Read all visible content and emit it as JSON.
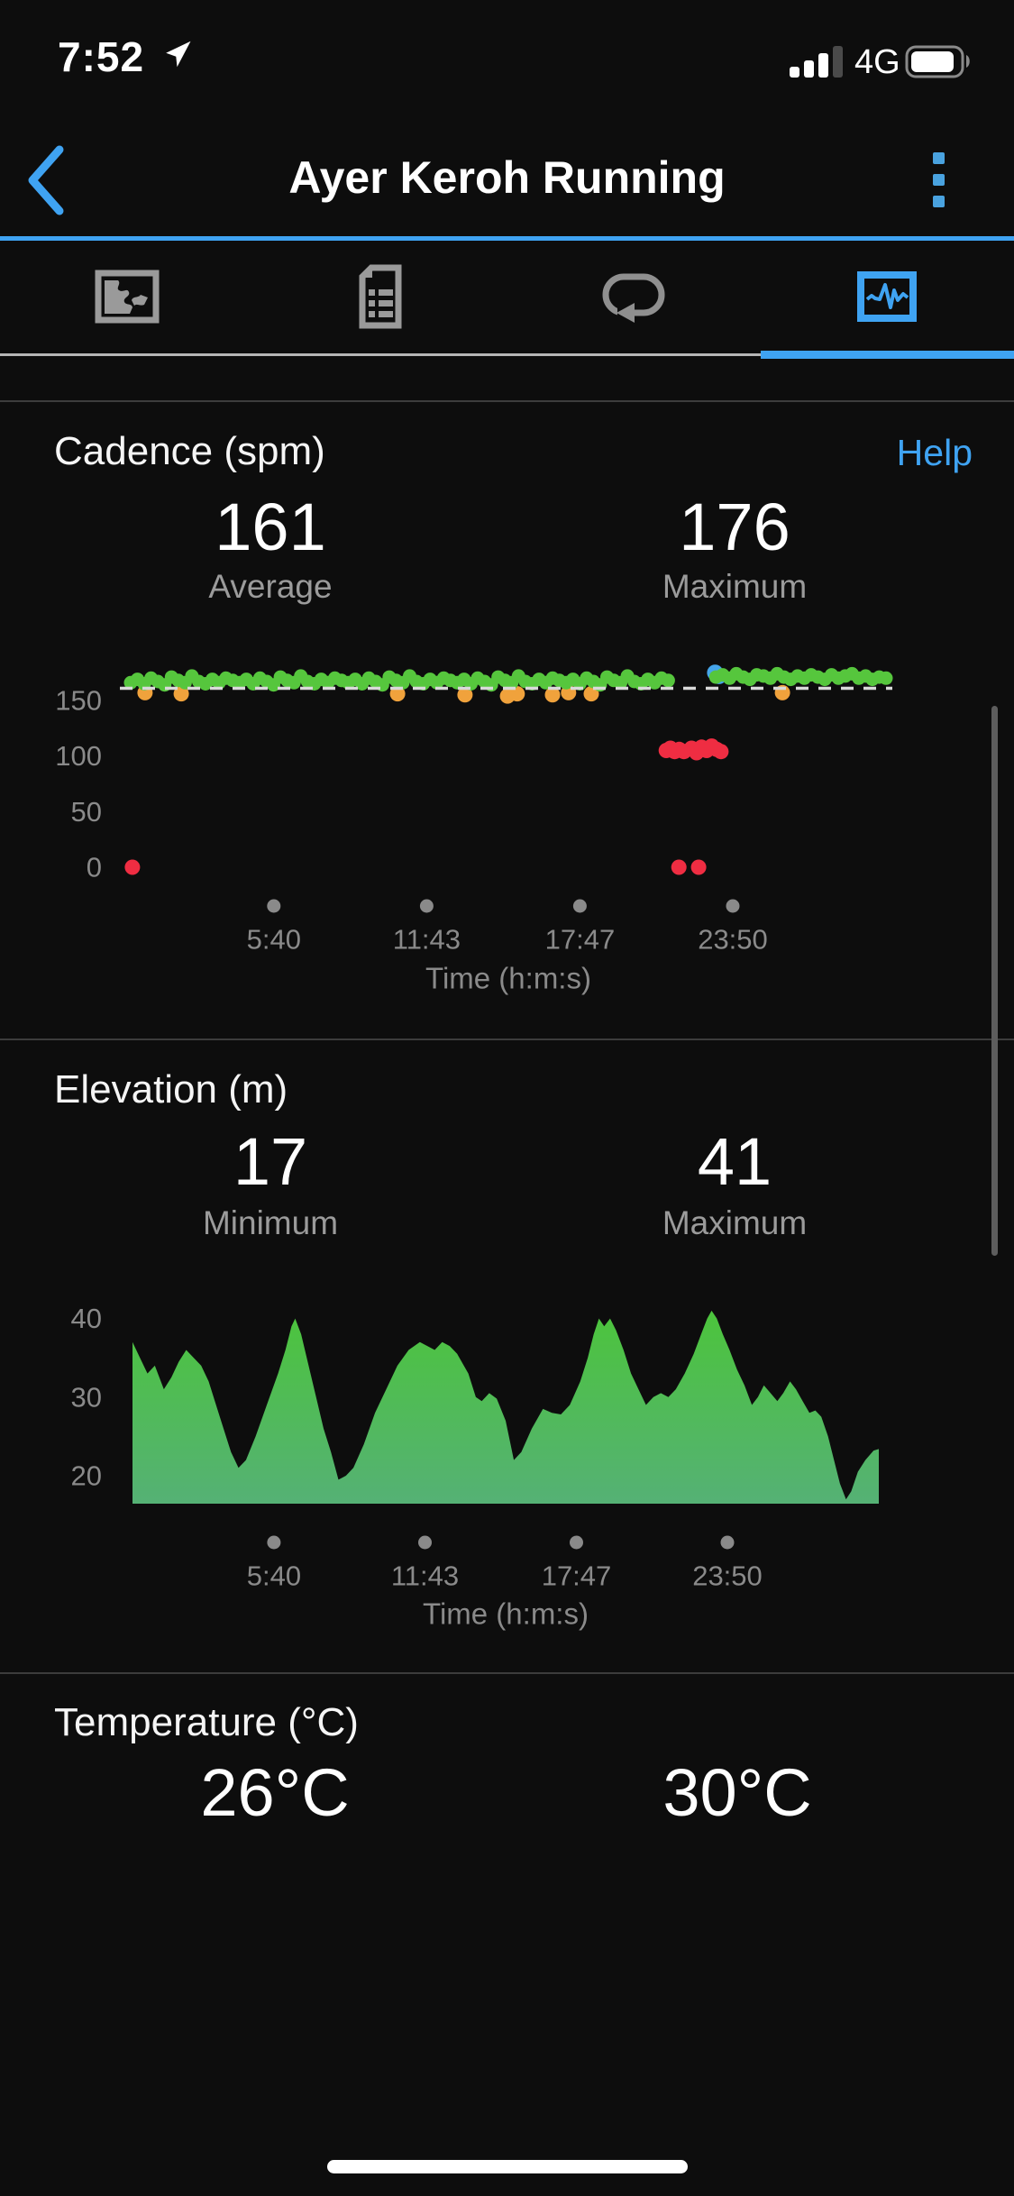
{
  "colors": {
    "accent": "#3fa3f2",
    "background": "#0d0d0d",
    "divider": "#3c3c3c",
    "text_primary": "#ffffff",
    "text_secondary": "#9b9b9b",
    "axis": "#8a8a8a",
    "dashed_line": "#d9d9d9",
    "icon_gray": "#9a9a9a"
  },
  "status_bar": {
    "time": "7:52",
    "network": "4G",
    "signal_bars_filled": 3,
    "signal_bars_total": 4,
    "battery_percent": 90
  },
  "header": {
    "title": "Ayer Keroh Running"
  },
  "tab_bar": {
    "tabs": [
      {
        "name": "map",
        "icon": "map-icon",
        "selected": false
      },
      {
        "name": "details",
        "icon": "document-icon",
        "selected": false
      },
      {
        "name": "laps",
        "icon": "loop-icon",
        "selected": false
      },
      {
        "name": "charts",
        "icon": "chart-icon",
        "selected": true
      }
    ]
  },
  "sections": {
    "cadence": {
      "title": "Cadence (spm)",
      "help_label": "Help",
      "stats": [
        {
          "value": "161",
          "label": "Average"
        },
        {
          "value": "176",
          "label": "Maximum"
        }
      ]
    },
    "elevation": {
      "title": "Elevation (m)",
      "stats": [
        {
          "value": "17",
          "label": "Minimum"
        },
        {
          "value": "41",
          "label": "Maximum"
        }
      ]
    },
    "temperature": {
      "title": "Temperature (°C)",
      "stats": [
        {
          "value": "26°C"
        },
        {
          "value": "30°C"
        }
      ]
    }
  },
  "chart_data": [
    {
      "type": "scatter",
      "title": "Cadence (spm)",
      "xlabel": "Time (h:m:s)",
      "x_range_s": [
        0,
        1794
      ],
      "x_ticks": {
        "seconds": [
          340,
          703,
          1067,
          1430
        ],
        "labels": [
          "5:40",
          "11:43",
          "17:47",
          "23:50"
        ]
      },
      "y_ticks": [
        150,
        100,
        50,
        0
      ],
      "ylim": [
        0,
        185
      ],
      "avg_line": 161,
      "series": [
        {
          "name": "green",
          "color": "#56c63d",
          "gap_s": [
            1287,
            1379
          ],
          "values": [
            166,
            169,
            165,
            170,
            167,
            164,
            171,
            168,
            166,
            172,
            167,
            165,
            169,
            166,
            170,
            168,
            166,
            169,
            165,
            170,
            167,
            164,
            171,
            168,
            166,
            172,
            167,
            165,
            169,
            166,
            170,
            168,
            166,
            169,
            165,
            170,
            167,
            164,
            171,
            168,
            166,
            172,
            167,
            165,
            169,
            166,
            170,
            168,
            166,
            169,
            165,
            170,
            167,
            164,
            171,
            168,
            166,
            172,
            167,
            165,
            169,
            166,
            170,
            168,
            166,
            169,
            165,
            170,
            167,
            164,
            171,
            168,
            166,
            172,
            167,
            165,
            169,
            166,
            170,
            168,
            167,
            168,
            166,
            169,
            167,
            170,
            171,
            173,
            170,
            174,
            171,
            169,
            173,
            172,
            170,
            174,
            171,
            169,
            172,
            170,
            173,
            171,
            169,
            173,
            170,
            172,
            174,
            170,
            172,
            169,
            171,
            170
          ]
        },
        {
          "name": "orange",
          "color": "#f0a23c",
          "points": [
            [
              34,
              157
            ],
            [
              120,
              156
            ],
            [
              634,
              156
            ],
            [
              794,
              155
            ],
            [
              895,
              154
            ],
            [
              918,
              156
            ],
            [
              1002,
              155
            ],
            [
              1040,
              157
            ],
            [
              1094,
              156
            ],
            [
              1548,
              157
            ]
          ]
        },
        {
          "name": "blue",
          "color": "#45a5ea",
          "points": [
            [
              1388,
              175
            ],
            [
              1397,
              172
            ]
          ]
        },
        {
          "name": "red",
          "color": "#ef2d42",
          "points": [
            [
              4,
              0
            ],
            [
              1272,
              105
            ],
            [
              1282,
              107
            ],
            [
              1292,
              104
            ],
            [
              1303,
              106
            ],
            [
              1314,
              104
            ],
            [
              1332,
              107
            ],
            [
              1344,
              103
            ],
            [
              1356,
              108
            ],
            [
              1368,
              105
            ],
            [
              1380,
              109
            ],
            [
              1392,
              106
            ],
            [
              1402,
              104
            ],
            [
              1302,
              0
            ],
            [
              1349,
              0
            ]
          ]
        }
      ]
    },
    {
      "type": "area",
      "title": "Elevation (m)",
      "xlabel": "Time (h:m:s)",
      "x_range_s": [
        0,
        1794
      ],
      "x_ticks": {
        "seconds": [
          340,
          703,
          1067,
          1430
        ],
        "labels": [
          "5:40",
          "11:43",
          "17:47",
          "23:50"
        ]
      },
      "y_ticks": [
        40,
        30,
        20
      ],
      "ylim": [
        16.5,
        44
      ],
      "gradient": [
        "#4cc43c",
        "#55b175"
      ],
      "profile": [
        [
          0,
          37
        ],
        [
          0.01,
          35
        ],
        [
          0.02,
          33
        ],
        [
          0.03,
          34
        ],
        [
          0.042,
          31
        ],
        [
          0.052,
          32.5
        ],
        [
          0.062,
          34.5
        ],
        [
          0.072,
          36
        ],
        [
          0.082,
          35
        ],
        [
          0.092,
          34
        ],
        [
          0.102,
          32
        ],
        [
          0.112,
          29
        ],
        [
          0.122,
          26
        ],
        [
          0.132,
          23
        ],
        [
          0.142,
          21
        ],
        [
          0.152,
          22
        ],
        [
          0.165,
          25
        ],
        [
          0.18,
          29
        ],
        [
          0.195,
          33
        ],
        [
          0.205,
          36
        ],
        [
          0.213,
          39
        ],
        [
          0.218,
          40
        ],
        [
          0.226,
          38
        ],
        [
          0.236,
          34
        ],
        [
          0.246,
          30
        ],
        [
          0.256,
          26
        ],
        [
          0.266,
          23
        ],
        [
          0.276,
          19.5
        ],
        [
          0.286,
          20
        ],
        [
          0.296,
          21
        ],
        [
          0.31,
          24
        ],
        [
          0.325,
          28
        ],
        [
          0.34,
          31
        ],
        [
          0.355,
          34
        ],
        [
          0.37,
          36
        ],
        [
          0.385,
          37
        ],
        [
          0.395,
          36.5
        ],
        [
          0.405,
          36
        ],
        [
          0.415,
          37
        ],
        [
          0.425,
          36.5
        ],
        [
          0.435,
          35.5
        ],
        [
          0.45,
          33
        ],
        [
          0.46,
          30
        ],
        [
          0.468,
          29.5
        ],
        [
          0.478,
          30.5
        ],
        [
          0.488,
          29.8
        ],
        [
          0.5,
          27
        ],
        [
          0.511,
          22
        ],
        [
          0.521,
          23
        ],
        [
          0.535,
          26
        ],
        [
          0.55,
          28.5
        ],
        [
          0.562,
          28
        ],
        [
          0.574,
          27.8
        ],
        [
          0.586,
          29
        ],
        [
          0.6,
          32
        ],
        [
          0.61,
          35
        ],
        [
          0.618,
          38
        ],
        [
          0.625,
          40
        ],
        [
          0.632,
          39
        ],
        [
          0.64,
          40
        ],
        [
          0.648,
          38.5
        ],
        [
          0.658,
          36
        ],
        [
          0.668,
          33
        ],
        [
          0.678,
          31
        ],
        [
          0.688,
          29
        ],
        [
          0.698,
          30
        ],
        [
          0.708,
          30.5
        ],
        [
          0.718,
          30
        ],
        [
          0.728,
          31
        ],
        [
          0.74,
          33
        ],
        [
          0.752,
          35.5
        ],
        [
          0.762,
          38
        ],
        [
          0.77,
          40
        ],
        [
          0.776,
          41
        ],
        [
          0.783,
          40
        ],
        [
          0.791,
          38
        ],
        [
          0.8,
          36
        ],
        [
          0.81,
          33.5
        ],
        [
          0.82,
          31.5
        ],
        [
          0.83,
          29
        ],
        [
          0.838,
          30
        ],
        [
          0.846,
          31.5
        ],
        [
          0.855,
          30.5
        ],
        [
          0.864,
          29.5
        ],
        [
          0.872,
          30.5
        ],
        [
          0.881,
          32
        ],
        [
          0.889,
          31
        ],
        [
          0.898,
          29.5
        ],
        [
          0.907,
          28
        ],
        [
          0.915,
          28.3
        ],
        [
          0.923,
          27.5
        ],
        [
          0.932,
          25
        ],
        [
          0.94,
          22
        ],
        [
          0.948,
          19
        ],
        [
          0.956,
          17
        ],
        [
          0.963,
          18
        ],
        [
          0.972,
          20.5
        ],
        [
          0.982,
          22
        ],
        [
          0.993,
          23.2
        ],
        [
          1,
          23.4
        ]
      ]
    }
  ]
}
